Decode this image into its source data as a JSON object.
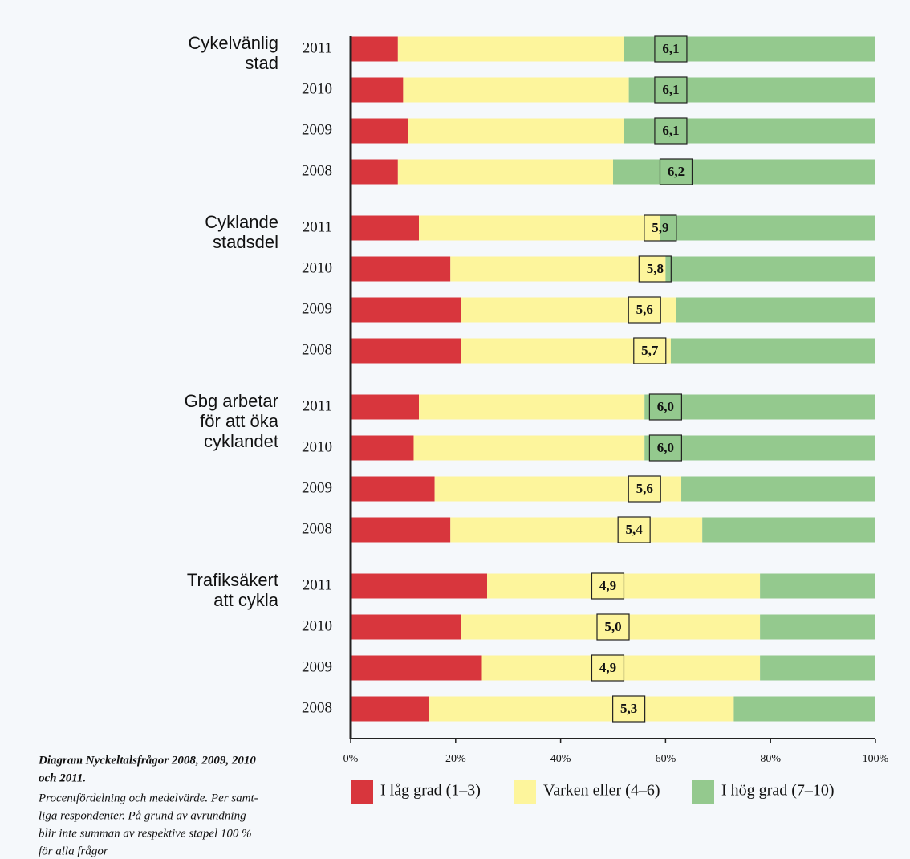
{
  "chart_data": {
    "type": "bar",
    "orientation": "horizontal",
    "stacked": true,
    "group_labels": [
      [
        "Cykelvänlig",
        "stad"
      ],
      [
        "Cyklande",
        "stadsdel"
      ],
      [
        "Gbg arbetar",
        "för att öka",
        "cyklandet"
      ],
      [
        "Trafiksäkert",
        "att cykla"
      ]
    ],
    "categories": [
      "2011",
      "2010",
      "2009",
      "2008",
      "2011",
      "2010",
      "2009",
      "2008",
      "2011",
      "2010",
      "2009",
      "2008",
      "2011",
      "2010",
      "2009",
      "2008"
    ],
    "series": [
      {
        "name": "I låg grad (1–3)",
        "color": "#d8363d",
        "values": [
          9,
          10,
          11,
          9,
          13,
          19,
          21,
          21,
          13,
          12,
          16,
          19,
          26,
          21,
          25,
          15
        ]
      },
      {
        "name": "Varken eller (4–6)",
        "color": "#fdf59c",
        "values": [
          43,
          43,
          41,
          41,
          46,
          41,
          41,
          40,
          43,
          44,
          47,
          48,
          52,
          57,
          53,
          58
        ]
      },
      {
        "name": "I hög grad (7–10)",
        "color": "#94c98e",
        "values": [
          48,
          47,
          48,
          50,
          41,
          40,
          38,
          39,
          44,
          44,
          37,
          33,
          22,
          22,
          22,
          27
        ]
      }
    ],
    "means": [
      6.1,
      6.1,
      6.1,
      6.2,
      5.9,
      5.8,
      5.6,
      5.7,
      6.0,
      6.0,
      5.6,
      5.4,
      4.9,
      5.0,
      4.9,
      5.3
    ],
    "mean_labels": [
      "6,1",
      "6,1",
      "6,1",
      "6,2",
      "5,9",
      "5,8",
      "5,6",
      "5,7",
      "6,0",
      "6,0",
      "5,6",
      "5,4",
      "4,9",
      "5,0",
      "4,9",
      "5,3"
    ],
    "xlim": [
      0,
      100
    ],
    "xticks": [
      {
        "value": 0,
        "label": "0%"
      },
      {
        "value": 20,
        "label": "20%"
      },
      {
        "value": 40,
        "label": "40%"
      },
      {
        "value": 60,
        "label": "60%"
      },
      {
        "value": 80,
        "label": "80%"
      },
      {
        "value": 100,
        "label": "100%"
      }
    ],
    "legend": "bottom",
    "caption": {
      "title": [
        "Diagram Nyckeltalsfrågor 2008, 2009, 2010",
        "och 2011."
      ],
      "text": [
        "Procentfördelning och medelvärde. Per samt-",
        "liga respondenter. På grund av avrundning",
        "blir inte summan av respektive stapel 100 %",
        "för alla frågor"
      ]
    }
  }
}
